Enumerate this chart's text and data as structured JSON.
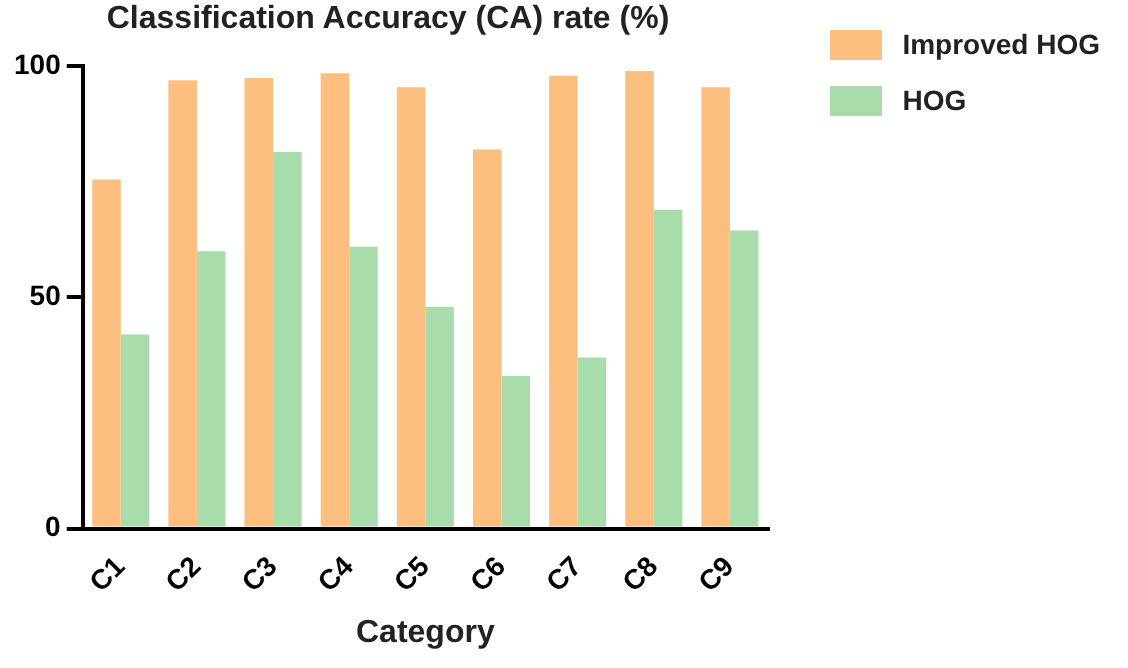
{
  "chart_data": {
    "type": "bar",
    "title": "Classification Accuracy (CA) rate (%)",
    "xlabel": "Category",
    "categories": [
      "C1",
      "C2",
      "C3",
      "C4",
      "C5",
      "C6",
      "C7",
      "C8",
      "C9"
    ],
    "series": [
      {
        "name": "Improved HOG",
        "color": "#fdbf80",
        "values": [
          75.5,
          97,
          97.5,
          98.5,
          95.5,
          82,
          98,
          99,
          95.5
        ]
      },
      {
        "name": "HOG",
        "color": "#a8dcaa",
        "values": [
          42,
          60,
          81.5,
          61,
          48,
          33,
          37,
          69,
          64.5
        ]
      }
    ],
    "ylim": [
      0,
      100
    ],
    "yticks": [
      0,
      50,
      100
    ],
    "grid": false,
    "legend": "top right"
  }
}
